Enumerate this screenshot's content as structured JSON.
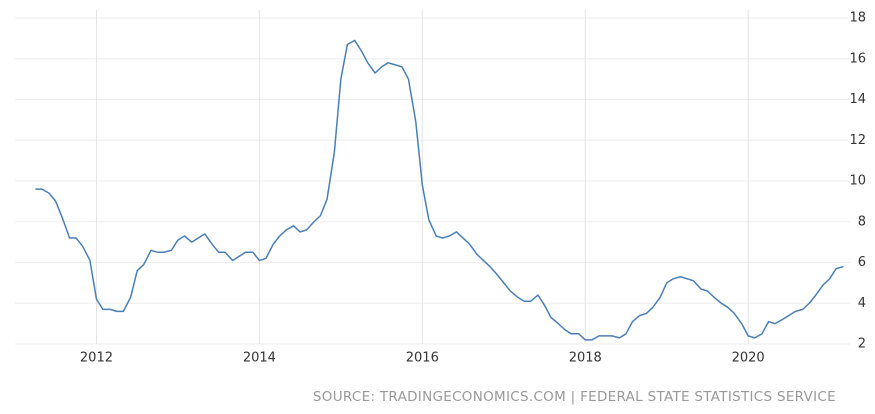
{
  "chart_data": {
    "type": "line",
    "source": "SOURCE: TRADINGECONOMICS.COM | FEDERAL STATE STATISTICS SERVICE",
    "x": [
      2011.25,
      2011.33,
      2011.42,
      2011.5,
      2011.58,
      2011.67,
      2011.75,
      2011.83,
      2011.92,
      2012,
      2012.08,
      2012.17,
      2012.25,
      2012.33,
      2012.42,
      2012.5,
      2012.58,
      2012.67,
      2012.75,
      2012.83,
      2012.92,
      2013,
      2013.08,
      2013.17,
      2013.25,
      2013.33,
      2013.42,
      2013.5,
      2013.58,
      2013.67,
      2013.75,
      2013.83,
      2013.92,
      2014,
      2014.08,
      2014.17,
      2014.25,
      2014.33,
      2014.42,
      2014.5,
      2014.58,
      2014.67,
      2014.75,
      2014.83,
      2014.92,
      2015,
      2015.08,
      2015.17,
      2015.25,
      2015.33,
      2015.42,
      2015.5,
      2015.58,
      2015.67,
      2015.75,
      2015.83,
      2015.92,
      2016,
      2016.08,
      2016.17,
      2016.25,
      2016.33,
      2016.42,
      2016.5,
      2016.58,
      2016.67,
      2016.75,
      2016.83,
      2016.92,
      2017,
      2017.08,
      2017.17,
      2017.25,
      2017.33,
      2017.42,
      2017.5,
      2017.58,
      2017.67,
      2017.75,
      2017.83,
      2017.92,
      2018,
      2018.08,
      2018.17,
      2018.25,
      2018.33,
      2018.42,
      2018.5,
      2018.58,
      2018.67,
      2018.75,
      2018.83,
      2018.92,
      2019,
      2019.08,
      2019.17,
      2019.25,
      2019.33,
      2019.42,
      2019.5,
      2019.58,
      2019.67,
      2019.75,
      2019.83,
      2019.92,
      2020,
      2020.08,
      2020.17,
      2020.25,
      2020.33,
      2020.42,
      2020.5,
      2020.58,
      2020.67,
      2020.75,
      2020.83,
      2020.92,
      2021,
      2021.08,
      2021.17
    ],
    "series": [
      {
        "color": "#4a7fb5",
        "values": [
          9.6,
          9.6,
          9.4,
          9.0,
          8.2,
          7.2,
          7.2,
          6.8,
          6.1,
          4.2,
          3.7,
          3.7,
          3.6,
          3.6,
          4.3,
          5.6,
          5.9,
          6.6,
          6.5,
          6.5,
          6.6,
          7.1,
          7.3,
          7.0,
          7.2,
          7.4,
          6.9,
          6.5,
          6.5,
          6.1,
          6.3,
          6.5,
          6.5,
          6.1,
          6.2,
          6.9,
          7.3,
          7.6,
          7.8,
          7.5,
          7.6,
          8.0,
          8.3,
          9.1,
          11.4,
          15.0,
          16.7,
          16.9,
          16.4,
          15.8,
          15.3,
          15.6,
          15.8,
          15.7,
          15.6,
          15.0,
          12.9,
          9.8,
          8.1,
          7.3,
          7.2,
          7.3,
          7.5,
          7.2,
          6.9,
          6.4,
          6.1,
          5.8,
          5.4,
          5.0,
          4.6,
          4.3,
          4.1,
          4.1,
          4.4,
          3.9,
          3.3,
          3.0,
          2.7,
          2.5,
          2.5,
          2.2,
          2.2,
          2.4,
          2.4,
          2.4,
          2.3,
          2.5,
          3.1,
          3.4,
          3.5,
          3.8,
          4.3,
          5.0,
          5.2,
          5.3,
          5.2,
          5.1,
          4.7,
          4.6,
          4.3,
          4.0,
          3.8,
          3.5,
          3.0,
          2.4,
          2.3,
          2.5,
          3.1,
          3.0,
          3.2,
          3.4,
          3.6,
          3.7,
          4.0,
          4.4,
          4.9,
          5.2,
          5.7,
          5.8
        ]
      }
    ],
    "xlim": [
      2011,
      2021.25
    ],
    "xticks": [
      2012,
      2014,
      2016,
      2018,
      2020
    ],
    "ylim": [
      2,
      18
    ],
    "yticks": [
      2,
      4,
      6,
      8,
      10,
      12,
      14,
      16,
      18
    ],
    "grid": true
  }
}
